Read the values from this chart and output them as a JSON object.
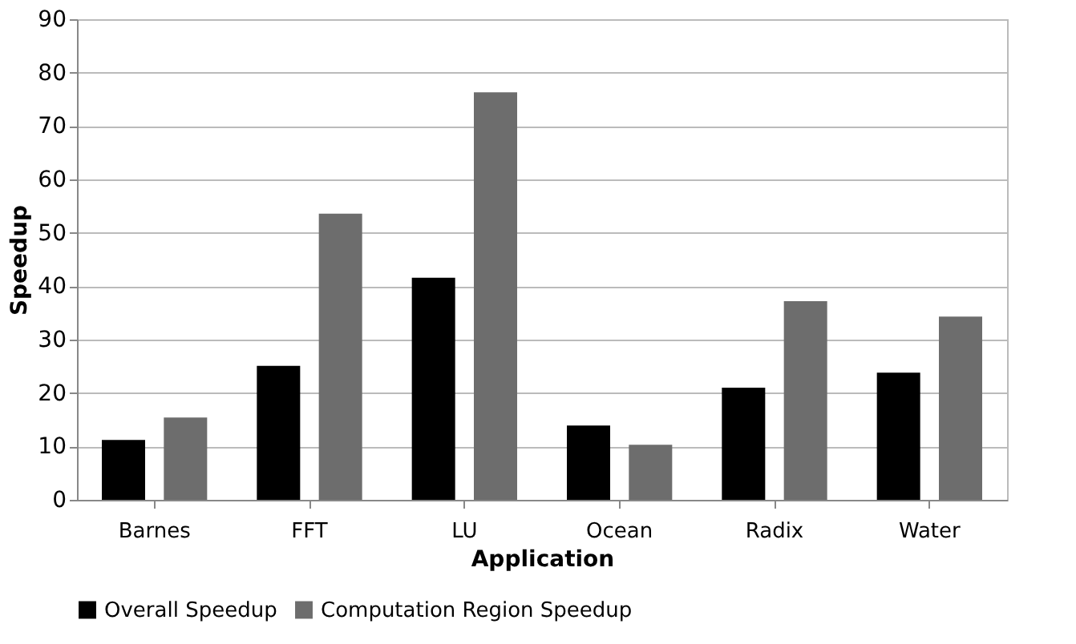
{
  "chart_data": {
    "type": "bar",
    "xlabel": "Application",
    "ylabel": "Speedup",
    "categories": [
      "Barnes",
      "FFT",
      "LU",
      "Ocean",
      "Radix",
      "Water"
    ],
    "series": [
      {
        "name": "Overall Speedup",
        "color": "#000000",
        "values": [
          11.2,
          25.1,
          41.6,
          13.9,
          21.0,
          23.8
        ]
      },
      {
        "name": "Computation Region Speedup",
        "color": "#6d6d6d",
        "values": [
          15.4,
          53.6,
          76.3,
          10.3,
          37.2,
          34.3
        ]
      }
    ],
    "ylim": [
      0,
      90
    ],
    "yticks": [
      0,
      10,
      20,
      30,
      40,
      50,
      60,
      70,
      80,
      90
    ],
    "grid": "y",
    "legend": "bottom"
  }
}
